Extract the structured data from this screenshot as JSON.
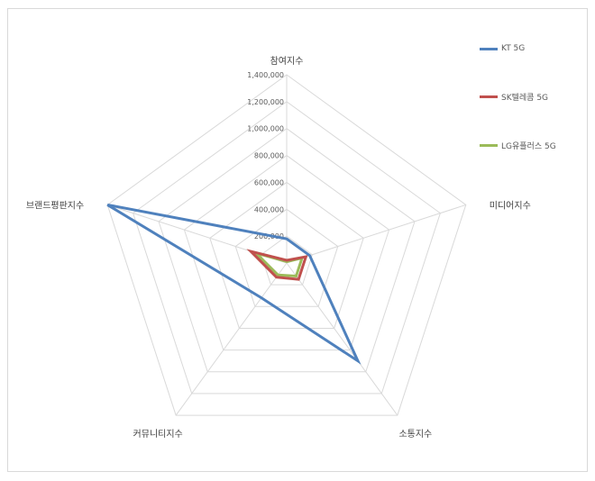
{
  "chart_data": {
    "type": "radar",
    "axes": [
      "참여지수",
      "미디어지수",
      "소통지수",
      "커뮤니티지수",
      "브랜드평판지수"
    ],
    "ticks": [
      "200,000",
      "400,000",
      "600,000",
      "800,000",
      "1,000,000",
      "1,200,000",
      "1,400,000"
    ],
    "rmax": 1400000,
    "grid": true,
    "legend_position": "right",
    "series": [
      {
        "name": "KT 5G",
        "color": "#4F81BD",
        "values": [
          180000,
          180000,
          900000,
          320000,
          1400000
        ]
      },
      {
        "name": "SK텔레콤 5G",
        "color": "#C0504D",
        "values": [
          20000,
          150000,
          150000,
          130000,
          280000
        ]
      },
      {
        "name": "LG유플러스 5G",
        "color": "#9BBB59",
        "values": [
          10000,
          120000,
          120000,
          110000,
          240000
        ]
      }
    ]
  }
}
